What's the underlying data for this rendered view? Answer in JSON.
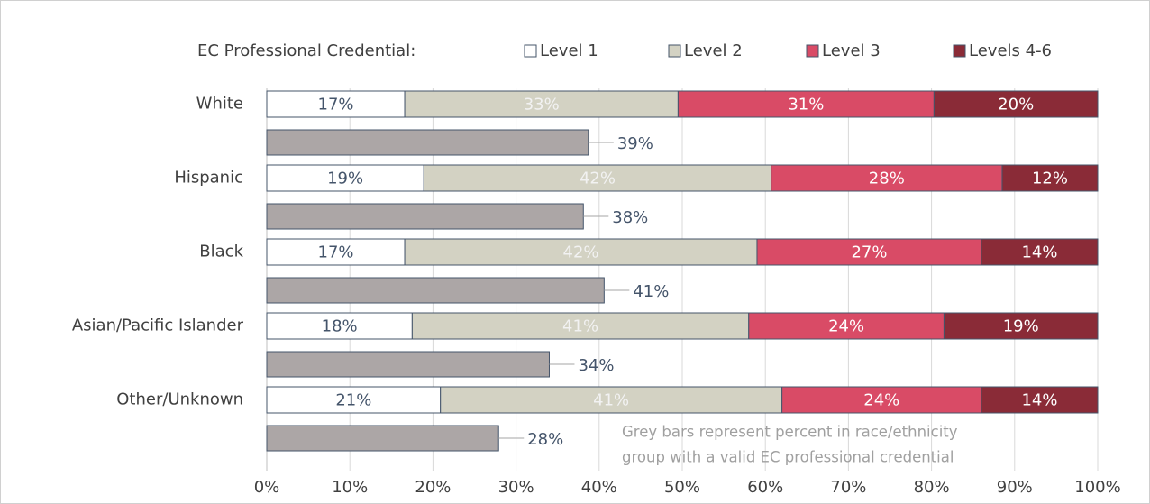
{
  "chart_data": {
    "type": "bar",
    "orientation": "horizontal",
    "stacked": true,
    "legend_title": "EC Professional Credential:",
    "categories": [
      "White",
      "Hispanic",
      "Black",
      "Asian/Pacific Islander",
      "Other/Unknown"
    ],
    "series": [
      {
        "name": "Level 1",
        "color": "#ffffff",
        "values": [
          16.6,
          18.9,
          16.6,
          17.5,
          20.9
        ],
        "value_labels": [
          "17%",
          "19%",
          "17%",
          "18%",
          "21%"
        ]
      },
      {
        "name": "Level 2",
        "color": "#d3d2c3",
        "values": [
          32.9,
          41.8,
          42.4,
          40.5,
          41.1
        ],
        "value_labels": [
          "33%",
          "42%",
          "42%",
          "41%",
          "41%"
        ]
      },
      {
        "name": "Level 3",
        "color": "#d94b66",
        "values": [
          30.8,
          27.8,
          27.0,
          23.5,
          24.0
        ],
        "value_labels": [
          "31%",
          "28%",
          "27%",
          "24%",
          "24%"
        ]
      },
      {
        "name": "Levels 4-6",
        "color": "#8a2b37",
        "values": [
          19.7,
          11.5,
          14.0,
          18.5,
          14.0
        ],
        "value_labels": [
          "20%",
          "12%",
          "14%",
          "19%",
          "14%"
        ]
      }
    ],
    "grey_bars": {
      "color": "#aca6a6",
      "values": [
        38.7,
        38.1,
        40.6,
        34,
        27.9
      ],
      "value_labels": [
        "39%",
        "38%",
        "41%",
        "34%",
        "28%"
      ]
    },
    "annotation": [
      "Grey bars represent percent in race/ethnicity",
      "group with a valid EC professional credential"
    ],
    "xlim": [
      0,
      100
    ],
    "xticks": [
      {
        "value": 0,
        "label": "0%"
      },
      {
        "value": 10,
        "label": "10%"
      },
      {
        "value": 20,
        "label": "20%"
      },
      {
        "value": 30,
        "label": "30%"
      },
      {
        "value": 40,
        "label": "40%"
      },
      {
        "value": 50,
        "label": "50%"
      },
      {
        "value": 60,
        "label": "60%"
      },
      {
        "value": 70,
        "label": "70%"
      },
      {
        "value": 80,
        "label": "80%"
      },
      {
        "value": 90,
        "label": "90%"
      },
      {
        "value": 100,
        "label": "100%"
      }
    ],
    "grid": true,
    "legend": "top"
  }
}
